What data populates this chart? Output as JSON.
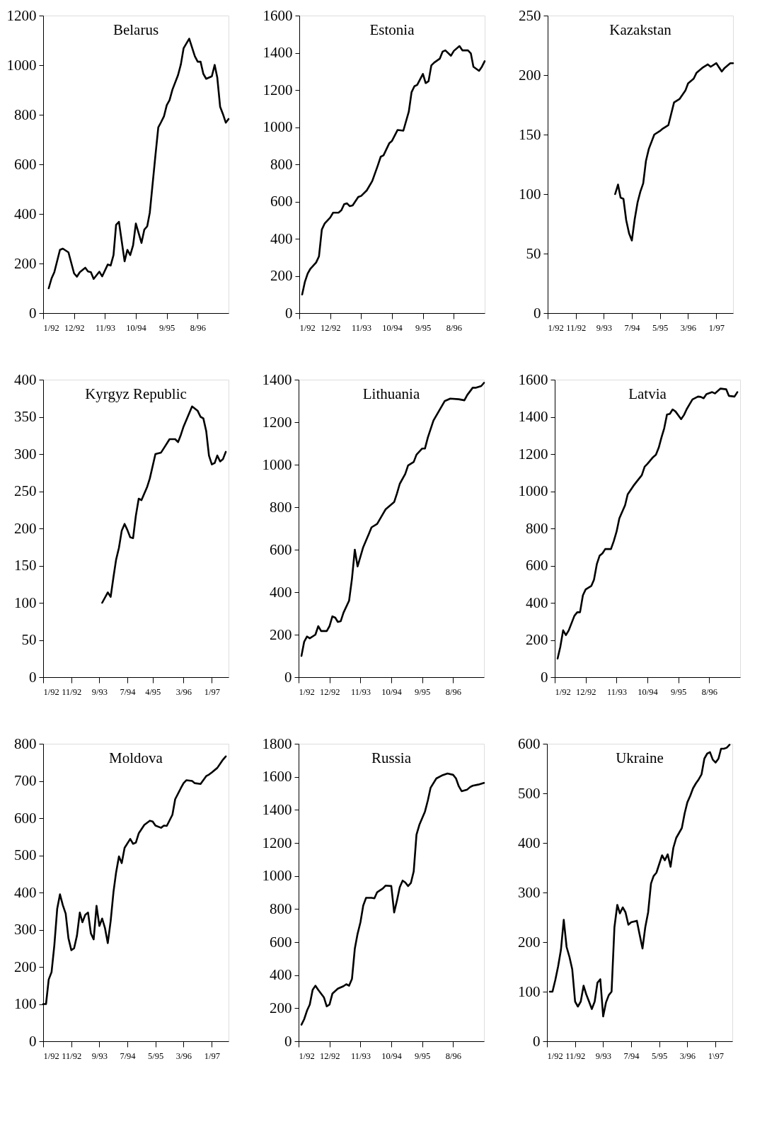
{
  "chart_data": [
    {
      "type": "line",
      "title": "Belarus",
      "color": "#000000",
      "grid": false,
      "xlim": [
        "1992-01",
        "1997-07"
      ],
      "ylim": [
        0,
        1200
      ],
      "yticks": [
        0,
        200,
        400,
        600,
        800,
        1000,
        1200
      ],
      "xticks": [
        {
          "value": "1992-01",
          "label": "1/92"
        },
        {
          "value": "1992-12",
          "label": "12/92"
        },
        {
          "value": "1993-11",
          "label": "11/93"
        },
        {
          "value": "1994-10",
          "label": "10/94"
        },
        {
          "value": "1995-09",
          "label": "9/95"
        },
        {
          "value": "1996-08",
          "label": "8/96"
        }
      ],
      "x": [
        "1992-03",
        "1992-04",
        "1992-05",
        "1992-07",
        "1992-08",
        "1992-10",
        "1992-12",
        "1993-01",
        "1993-02",
        "1993-04",
        "1993-05",
        "1993-06",
        "1993-07",
        "1993-09",
        "1993-10",
        "1993-12",
        "1994-01",
        "1994-02",
        "1994-03",
        "1994-04",
        "1994-06",
        "1994-07",
        "1994-08",
        "1994-09",
        "1994-10",
        "1994-12",
        "1995-01",
        "1995-02",
        "1995-03",
        "1995-05",
        "1995-06",
        "1995-07",
        "1995-08",
        "1995-09",
        "1995-10",
        "1995-11",
        "1996-01",
        "1996-02",
        "1996-03",
        "1996-05",
        "1996-07",
        "1996-08",
        "1996-09",
        "1996-10",
        "1996-11",
        "1997-01",
        "1997-02",
        "1997-03",
        "1997-04",
        "1997-05",
        "1997-06",
        "1997-07"
      ],
      "values": [
        100,
        140,
        165,
        255,
        260,
        245,
        160,
        147,
        165,
        183,
        168,
        165,
        138,
        167,
        148,
        196,
        192,
        234,
        356,
        368,
        209,
        255,
        234,
        273,
        361,
        283,
        337,
        350,
        405,
        636,
        749,
        770,
        793,
        839,
        859,
        901,
        960,
        1004,
        1068,
        1107,
        1036,
        1014,
        1014,
        965,
        945,
        955,
        1001,
        950,
        832,
        803,
        768,
        783
      ]
    },
    {
      "type": "line",
      "title": "Estonia",
      "color": "#000000",
      "grid": false,
      "xlim": [
        "1992-01",
        "1997-07"
      ],
      "ylim": [
        0,
        1600
      ],
      "yticks": [
        0,
        200,
        400,
        600,
        800,
        1000,
        1200,
        1400,
        1600
      ],
      "xticks": [
        {
          "value": "1992-01",
          "label": "1/92"
        },
        {
          "value": "1992-12",
          "label": "12/92"
        },
        {
          "value": "1993-11",
          "label": "11/93"
        },
        {
          "value": "1994-10",
          "label": "10/94"
        },
        {
          "value": "1995-09",
          "label": "9/95"
        },
        {
          "value": "1996-08",
          "label": "8/96"
        }
      ],
      "x": [
        "1992-02",
        "1992-03",
        "1992-04",
        "1992-05",
        "1992-07",
        "1992-08",
        "1992-09",
        "1992-10",
        "1992-12",
        "1993-01",
        "1993-03",
        "1993-04",
        "1993-05",
        "1993-06",
        "1993-07",
        "1993-08",
        "1993-10",
        "1993-11",
        "1994-01",
        "1994-03",
        "1994-05",
        "1994-06",
        "1994-07",
        "1994-09",
        "1994-10",
        "1994-12",
        "1995-02",
        "1995-04",
        "1995-05",
        "1995-06",
        "1995-07",
        "1995-09",
        "1995-10",
        "1995-11",
        "1995-12",
        "1996-01",
        "1996-03",
        "1996-04",
        "1996-05",
        "1996-07",
        "1996-08",
        "1996-10",
        "1996-11",
        "1997-01",
        "1997-02",
        "1997-03",
        "1997-05",
        "1997-06",
        "1997-07"
      ],
      "values": [
        100,
        167,
        213,
        239,
        272,
        305,
        449,
        481,
        514,
        540,
        540,
        553,
        586,
        590,
        575,
        579,
        625,
        630,
        660,
        710,
        795,
        841,
        848,
        913,
        926,
        985,
        981,
        1083,
        1188,
        1220,
        1227,
        1286,
        1237,
        1247,
        1332,
        1347,
        1368,
        1406,
        1413,
        1384,
        1410,
        1436,
        1413,
        1413,
        1397,
        1325,
        1303,
        1325,
        1355
      ]
    },
    {
      "type": "line",
      "title": "Kazakstan",
      "color": "#000000",
      "grid": false,
      "xlim": [
        "1992-01",
        "1997-07"
      ],
      "ylim": [
        0,
        250
      ],
      "yticks": [
        0,
        50,
        100,
        150,
        200,
        250
      ],
      "xticks": [
        {
          "value": "1992-01",
          "label": "1/92"
        },
        {
          "value": "1992-11",
          "label": "11/92"
        },
        {
          "value": "1993-09",
          "label": "9/93"
        },
        {
          "value": "1994-07",
          "label": "7/94"
        },
        {
          "value": "1995-05",
          "label": "5/95"
        },
        {
          "value": "1996-03",
          "label": "3/96"
        },
        {
          "value": "1997-01",
          "label": "1/97"
        }
      ],
      "x": [
        "1994-01",
        "1994-02",
        "1994-03",
        "1994-04",
        "1994-05",
        "1994-06",
        "1994-07",
        "1994-08",
        "1994-09",
        "1994-10",
        "1994-11",
        "1994-12",
        "1995-01",
        "1995-03",
        "1995-05",
        "1995-06",
        "1995-08",
        "1995-10",
        "1995-12",
        "1996-02",
        "1996-03",
        "1996-05",
        "1996-06",
        "1996-08",
        "1996-10",
        "1996-11",
        "1997-01",
        "1997-03",
        "1997-04",
        "1997-06",
        "1997-07"
      ],
      "values": [
        100,
        108,
        97,
        96,
        78,
        67,
        61,
        79,
        93,
        102,
        109,
        128,
        138,
        150,
        153,
        155,
        158,
        177,
        180,
        187,
        193,
        197,
        202,
        206,
        209,
        207,
        210,
        203,
        206,
        210,
        210
      ]
    },
    {
      "type": "line",
      "title": "Kyrgyz Republic",
      "color": "#000000",
      "grid": false,
      "xlim": [
        "1992-01",
        "1997-07"
      ],
      "ylim": [
        0,
        400
      ],
      "yticks": [
        0,
        50,
        100,
        150,
        200,
        250,
        300,
        350,
        400
      ],
      "xticks": [
        {
          "value": "1992-01",
          "label": "1/92"
        },
        {
          "value": "1992-11",
          "label": "11/92"
        },
        {
          "value": "1993-09",
          "label": "9/93"
        },
        {
          "value": "1994-07",
          "label": "7/94"
        },
        {
          "value": "1995-04",
          "label": "4/95"
        },
        {
          "value": "1996-03",
          "label": "3/96"
        },
        {
          "value": "1997-01",
          "label": "1/97"
        }
      ],
      "x": [
        "1993-10",
        "1993-12",
        "1994-01",
        "1994-02",
        "1994-03",
        "1994-04",
        "1994-05",
        "1994-06",
        "1994-07",
        "1994-08",
        "1994-09",
        "1994-10",
        "1994-11",
        "1994-12",
        "1995-02",
        "1995-03",
        "1995-05",
        "1995-07",
        "1995-08",
        "1995-10",
        "1995-12",
        "1996-01",
        "1996-02",
        "1996-03",
        "1996-06",
        "1996-08",
        "1996-09",
        "1996-10",
        "1996-11",
        "1996-12",
        "1997-01",
        "1997-02",
        "1997-03",
        "1997-04",
        "1997-05",
        "1997-06"
      ],
      "values": [
        100,
        114,
        108,
        135,
        158,
        174,
        197,
        206,
        198,
        188,
        187,
        217,
        240,
        238,
        256,
        267,
        300,
        302,
        308,
        320,
        320,
        316,
        326,
        337,
        364,
        358,
        350,
        348,
        331,
        298,
        286,
        288,
        298,
        290,
        293,
        303
      ]
    },
    {
      "type": "line",
      "title": "Lithuania",
      "color": "#000000",
      "grid": false,
      "xlim": [
        "1992-01",
        "1997-07"
      ],
      "ylim": [
        0,
        1400
      ],
      "yticks": [
        0,
        200,
        400,
        600,
        800,
        1000,
        1200,
        1400
      ],
      "xticks": [
        {
          "value": "1992-01",
          "label": "1/92"
        },
        {
          "value": "1992-12",
          "label": "12/92"
        },
        {
          "value": "1993-11",
          "label": "11/93"
        },
        {
          "value": "1994-10",
          "label": "10/94"
        },
        {
          "value": "1995-09",
          "label": "9/95"
        },
        {
          "value": "1996-08",
          "label": "8/96"
        }
      ],
      "x": [
        "1992-02",
        "1992-03",
        "1992-04",
        "1992-05",
        "1992-07",
        "1992-08",
        "1992-09",
        "1992-11",
        "1992-12",
        "1993-01",
        "1993-02",
        "1993-03",
        "1993-04",
        "1993-05",
        "1993-07",
        "1993-08",
        "1993-09",
        "1993-10",
        "1993-12",
        "1994-02",
        "1994-03",
        "1994-05",
        "1994-07",
        "1994-08",
        "1994-11",
        "1994-12",
        "1995-01",
        "1995-03",
        "1995-04",
        "1995-06",
        "1995-07",
        "1995-09",
        "1995-10",
        "1995-11",
        "1996-01",
        "1996-03",
        "1996-05",
        "1996-07",
        "1996-10",
        "1996-12",
        "1997-01",
        "1997-03",
        "1997-04",
        "1997-06",
        "1997-07"
      ],
      "values": [
        100,
        166,
        191,
        183,
        200,
        240,
        217,
        217,
        240,
        286,
        280,
        260,
        263,
        303,
        360,
        463,
        600,
        521,
        612,
        675,
        705,
        721,
        767,
        790,
        824,
        864,
        910,
        956,
        996,
        1013,
        1047,
        1076,
        1076,
        1128,
        1208,
        1253,
        1299,
        1311,
        1308,
        1303,
        1328,
        1362,
        1362,
        1370,
        1385
      ]
    },
    {
      "type": "line",
      "title": "Latvia",
      "color": "#000000",
      "grid": false,
      "xlim": [
        "1992-01",
        "1997-07"
      ],
      "ylim": [
        0,
        1600
      ],
      "yticks": [
        0,
        200,
        400,
        600,
        800,
        1000,
        1200,
        1400,
        1600
      ],
      "xticks": [
        {
          "value": "1992-01",
          "label": "1/92"
        },
        {
          "value": "1992-12",
          "label": "12/92"
        },
        {
          "value": "1993-11",
          "label": "11/93"
        },
        {
          "value": "1994-10",
          "label": "10/94"
        },
        {
          "value": "1995-09",
          "label": "9/95"
        },
        {
          "value": "1996-08",
          "label": "8/96"
        }
      ],
      "x": [
        "1992-02",
        "1992-03",
        "1992-04",
        "1992-05",
        "1992-06",
        "1992-08",
        "1992-09",
        "1992-10",
        "1992-11",
        "1992-12",
        "1993-02",
        "1993-03",
        "1993-04",
        "1993-05",
        "1993-06",
        "1993-07",
        "1993-09",
        "1993-10",
        "1993-11",
        "1993-12",
        "1994-02",
        "1994-03",
        "1994-05",
        "1994-06",
        "1994-08",
        "1994-09",
        "1994-10",
        "1994-12",
        "1995-01",
        "1995-02",
        "1995-03",
        "1995-04",
        "1995-05",
        "1995-06",
        "1995-07",
        "1995-08",
        "1995-10",
        "1995-11",
        "1995-12",
        "1996-01",
        "1996-02",
        "1996-04",
        "1996-05",
        "1996-06",
        "1996-07",
        "1996-09",
        "1996-10",
        "1996-12",
        "1997-02",
        "1997-03",
        "1997-05",
        "1997-06"
      ],
      "values": [
        100,
        162,
        252,
        226,
        252,
        330,
        349,
        349,
        440,
        472,
        491,
        524,
        608,
        653,
        666,
        689,
        689,
        731,
        783,
        854,
        925,
        983,
        1028,
        1048,
        1086,
        1132,
        1147,
        1183,
        1196,
        1235,
        1287,
        1339,
        1412,
        1416,
        1440,
        1429,
        1388,
        1410,
        1442,
        1468,
        1494,
        1509,
        1507,
        1500,
        1522,
        1533,
        1526,
        1552,
        1548,
        1513,
        1509,
        1533
      ]
    },
    {
      "type": "line",
      "title": "Moldova",
      "color": "#000000",
      "grid": false,
      "xlim": [
        "1992-01",
        "1997-07"
      ],
      "ylim": [
        0,
        800
      ],
      "yticks": [
        0,
        100,
        200,
        300,
        400,
        500,
        600,
        700,
        800
      ],
      "xticks": [
        {
          "value": "1992-01",
          "label": "1/92"
        },
        {
          "value": "1992-11",
          "label": "11/92"
        },
        {
          "value": "1993-09",
          "label": "9/93"
        },
        {
          "value": "1994-07",
          "label": "7/94"
        },
        {
          "value": "1995-05",
          "label": "5/95"
        },
        {
          "value": "1996-03",
          "label": "3/96"
        },
        {
          "value": "1997-01",
          "label": "1/97"
        }
      ],
      "x": [
        "1992-01",
        "1992-02",
        "1992-03",
        "1992-04",
        "1992-05",
        "1992-06",
        "1992-07",
        "1992-08",
        "1992-09",
        "1992-10",
        "1992-11",
        "1992-12",
        "1993-01",
        "1993-02",
        "1993-03",
        "1993-04",
        "1993-05",
        "1993-06",
        "1993-07",
        "1993-08",
        "1993-09",
        "1993-10",
        "1993-11",
        "1993-12",
        "1994-01",
        "1994-02",
        "1994-03",
        "1994-04",
        "1994-05",
        "1994-06",
        "1994-08",
        "1994-09",
        "1994-10",
        "1994-11",
        "1995-01",
        "1995-03",
        "1995-04",
        "1995-05",
        "1995-07",
        "1995-08",
        "1995-09",
        "1995-11",
        "1995-12",
        "1996-02",
        "1996-03",
        "1996-04",
        "1996-06",
        "1996-07",
        "1996-09",
        "1996-11",
        "1996-12",
        "1997-01",
        "1997-03",
        "1997-04",
        "1997-05",
        "1997-06"
      ],
      "values": [
        100,
        100,
        166,
        186,
        258,
        356,
        395,
        366,
        343,
        277,
        245,
        250,
        284,
        346,
        320,
        340,
        346,
        290,
        274,
        364,
        310,
        330,
        304,
        264,
        323,
        402,
        454,
        497,
        479,
        520,
        544,
        531,
        534,
        559,
        582,
        593,
        591,
        580,
        574,
        580,
        579,
        609,
        651,
        681,
        694,
        702,
        700,
        694,
        692,
        713,
        717,
        723,
        735,
        746,
        757,
        766
      ]
    },
    {
      "type": "line",
      "title": "Russia",
      "color": "#000000",
      "grid": false,
      "xlim": [
        "1992-01",
        "1997-07"
      ],
      "ylim": [
        0,
        1800
      ],
      "yticks": [
        0,
        200,
        400,
        600,
        800,
        1000,
        1200,
        1400,
        1600,
        1800
      ],
      "xticks": [
        {
          "value": "1992-01",
          "label": "1/92"
        },
        {
          "value": "1992-12",
          "label": "12/92"
        },
        {
          "value": "1993-11",
          "label": "11/93"
        },
        {
          "value": "1994-10",
          "label": "10/94"
        },
        {
          "value": "1995-09",
          "label": "9/95"
        },
        {
          "value": "1996-08",
          "label": "8/96"
        }
      ],
      "x": [
        "1992-02",
        "1992-03",
        "1992-04",
        "1992-05",
        "1992-06",
        "1992-07",
        "1992-08",
        "1992-10",
        "1992-11",
        "1992-12",
        "1993-01",
        "1993-03",
        "1993-05",
        "1993-06",
        "1993-07",
        "1993-08",
        "1993-09",
        "1993-10",
        "1993-11",
        "1993-12",
        "1994-01",
        "1994-03",
        "1994-04",
        "1994-05",
        "1994-07",
        "1994-08",
        "1994-10",
        "1994-11",
        "1994-12",
        "1995-01",
        "1995-02",
        "1995-03",
        "1995-04",
        "1995-05",
        "1995-06",
        "1995-07",
        "1995-08",
        "1995-10",
        "1995-11",
        "1995-12",
        "1996-02",
        "1996-04",
        "1996-06",
        "1996-08",
        "1996-09",
        "1996-10",
        "1996-11",
        "1997-01",
        "1997-02",
        "1997-03",
        "1997-05",
        "1997-07"
      ],
      "values": [
        100,
        133,
        185,
        222,
        311,
        336,
        311,
        266,
        211,
        222,
        288,
        318,
        333,
        345,
        336,
        377,
        560,
        650,
        720,
        821,
        868,
        868,
        865,
        902,
        924,
        942,
        939,
        779,
        850,
        932,
        972,
        961,
        939,
        957,
        1028,
        1250,
        1309,
        1390,
        1457,
        1534,
        1590,
        1608,
        1620,
        1612,
        1590,
        1543,
        1513,
        1523,
        1538,
        1546,
        1553,
        1563
      ]
    },
    {
      "type": "line",
      "title": "Ukraine",
      "color": "#000000",
      "grid": false,
      "xlim": [
        "1992-01",
        "1997-07"
      ],
      "ylim": [
        0,
        600
      ],
      "yticks": [
        0,
        100,
        200,
        300,
        400,
        500,
        600
      ],
      "xticks": [
        {
          "value": "1992-01",
          "label": "1/92"
        },
        {
          "value": "1992-11",
          "label": "11/92"
        },
        {
          "value": "1993-09",
          "label": "9/93"
        },
        {
          "value": "1994-07",
          "label": "7/94"
        },
        {
          "value": "1995-05",
          "label": "5/95"
        },
        {
          "value": "1996-03",
          "label": "3/96"
        },
        {
          "value": "1997-01",
          "label": "1\\97"
        }
      ],
      "x": [
        "1992-02",
        "1992-03",
        "1992-04",
        "1992-05",
        "1992-06",
        "1992-07",
        "1992-08",
        "1992-09",
        "1992-10",
        "1992-11",
        "1992-12",
        "1993-01",
        "1993-02",
        "1993-03",
        "1993-04",
        "1993-05",
        "1993-06",
        "1993-07",
        "1993-08",
        "1993-09",
        "1993-10",
        "1993-11",
        "1993-12",
        "1994-01",
        "1994-02",
        "1994-03",
        "1994-04",
        "1994-05",
        "1994-06",
        "1994-07",
        "1994-09",
        "1994-10",
        "1994-11",
        "1994-12",
        "1995-01",
        "1995-02",
        "1995-03",
        "1995-04",
        "1995-06",
        "1995-07",
        "1995-08",
        "1995-09",
        "1995-10",
        "1995-11",
        "1996-01",
        "1996-02",
        "1996-03",
        "1996-04",
        "1996-05",
        "1996-06",
        "1996-07",
        "1996-08",
        "1996-09",
        "1996-10",
        "1996-11",
        "1996-12",
        "1997-01",
        "1997-02",
        "1997-03",
        "1997-04",
        "1997-05",
        "1997-06"
      ],
      "values": [
        100,
        100,
        124,
        151,
        185,
        245,
        190,
        170,
        145,
        80,
        70,
        80,
        112,
        95,
        80,
        65,
        80,
        118,
        125,
        50,
        78,
        93,
        100,
        230,
        275,
        258,
        270,
        260,
        235,
        240,
        243,
        215,
        187,
        230,
        260,
        318,
        333,
        340,
        375,
        365,
        377,
        352,
        390,
        410,
        430,
        460,
        482,
        495,
        510,
        520,
        528,
        538,
        570,
        580,
        583,
        568,
        562,
        570,
        590,
        590,
        592,
        598
      ]
    }
  ]
}
